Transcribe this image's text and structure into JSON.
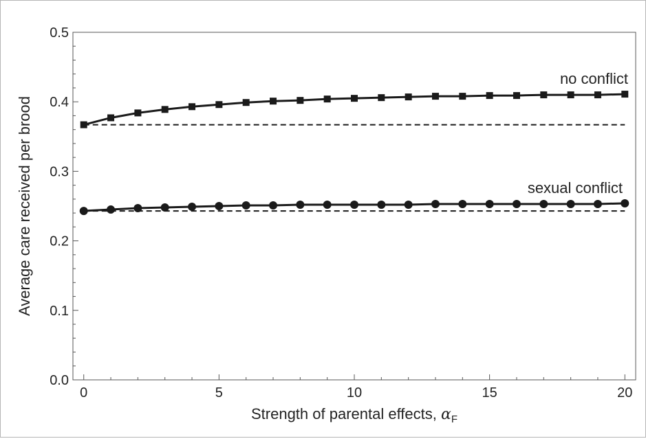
{
  "chart_data": {
    "type": "line",
    "xlabel": "Strength of parental effects, ",
    "xlabel_symbol": "α",
    "xlabel_subscript": "F",
    "ylabel": "Average care received per brood",
    "xlim": [
      -0.4,
      20.4
    ],
    "ylim": [
      0.0,
      0.5
    ],
    "xticks": [
      0,
      5,
      10,
      15,
      20
    ],
    "yticks": [
      0.0,
      0.1,
      0.2,
      0.3,
      0.4,
      0.5
    ],
    "xtick_labels": [
      "0",
      "5",
      "10",
      "15",
      "20"
    ],
    "ytick_labels": [
      "0.0",
      "0.1",
      "0.2",
      "0.3",
      "0.4",
      "0.5"
    ],
    "grid": false,
    "frame": true,
    "series": [
      {
        "name": "no conflict",
        "marker": "square",
        "x": [
          0,
          1,
          2,
          3,
          4,
          5,
          6,
          7,
          8,
          9,
          10,
          11,
          12,
          13,
          14,
          15,
          16,
          17,
          18,
          19,
          20
        ],
        "values": [
          0.367,
          0.377,
          0.384,
          0.389,
          0.393,
          0.396,
          0.399,
          0.401,
          0.402,
          0.404,
          0.405,
          0.406,
          0.407,
          0.408,
          0.408,
          0.409,
          0.409,
          0.41,
          0.41,
          0.41,
          0.411
        ],
        "baseline": 0.367
      },
      {
        "name": "sexual conflict",
        "marker": "circle",
        "x": [
          0,
          1,
          2,
          3,
          4,
          5,
          6,
          7,
          8,
          9,
          10,
          11,
          12,
          13,
          14,
          15,
          16,
          17,
          18,
          19,
          20
        ],
        "values": [
          0.243,
          0.245,
          0.247,
          0.248,
          0.249,
          0.25,
          0.251,
          0.251,
          0.252,
          0.252,
          0.252,
          0.252,
          0.252,
          0.253,
          0.253,
          0.253,
          0.253,
          0.253,
          0.253,
          0.253,
          0.254
        ],
        "baseline": 0.243
      }
    ],
    "colors": {
      "line": "#1a1a1a",
      "frame": "#555555",
      "text": "#222222"
    }
  }
}
